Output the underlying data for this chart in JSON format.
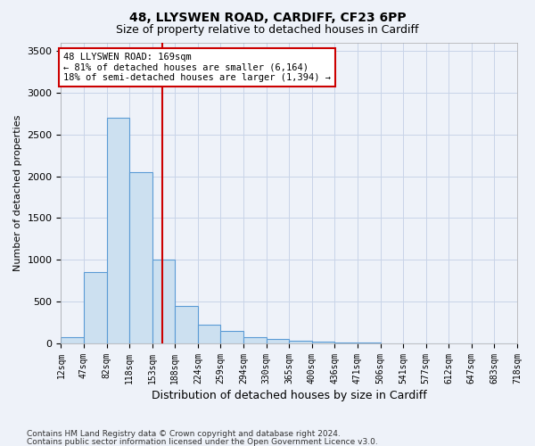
{
  "title1": "48, LLYSWEN ROAD, CARDIFF, CF23 6PP",
  "title2": "Size of property relative to detached houses in Cardiff",
  "xlabel": "Distribution of detached houses by size in Cardiff",
  "ylabel": "Number of detached properties",
  "annotation_title": "48 LLYSWEN ROAD: 169sqm",
  "annotation_line1": "← 81% of detached houses are smaller (6,164)",
  "annotation_line2": "18% of semi-detached houses are larger (1,394) →",
  "footnote1": "Contains HM Land Registry data © Crown copyright and database right 2024.",
  "footnote2": "Contains public sector information licensed under the Open Government Licence v3.0.",
  "bin_labels": [
    "12sqm",
    "47sqm",
    "82sqm",
    "118sqm",
    "153sqm",
    "188sqm",
    "224sqm",
    "259sqm",
    "294sqm",
    "330sqm",
    "365sqm",
    "400sqm",
    "436sqm",
    "471sqm",
    "506sqm",
    "541sqm",
    "577sqm",
    "612sqm",
    "647sqm",
    "683sqm",
    "718sqm"
  ],
  "bar_heights": [
    75,
    850,
    2700,
    2050,
    1000,
    450,
    225,
    150,
    75,
    50,
    35,
    25,
    15,
    8,
    5,
    3,
    2,
    1,
    1,
    1
  ],
  "vline_pos": 4.46,
  "bar_color": "#cce0f0",
  "bar_edge_color": "#5b9bd5",
  "vline_color": "#cc0000",
  "annotation_box_color": "#cc0000",
  "bg_color": "#eef2f9",
  "grid_color": "#c8d4e8",
  "ylim": [
    0,
    3600
  ],
  "yticks": [
    0,
    500,
    1000,
    1500,
    2000,
    2500,
    3000,
    3500
  ]
}
